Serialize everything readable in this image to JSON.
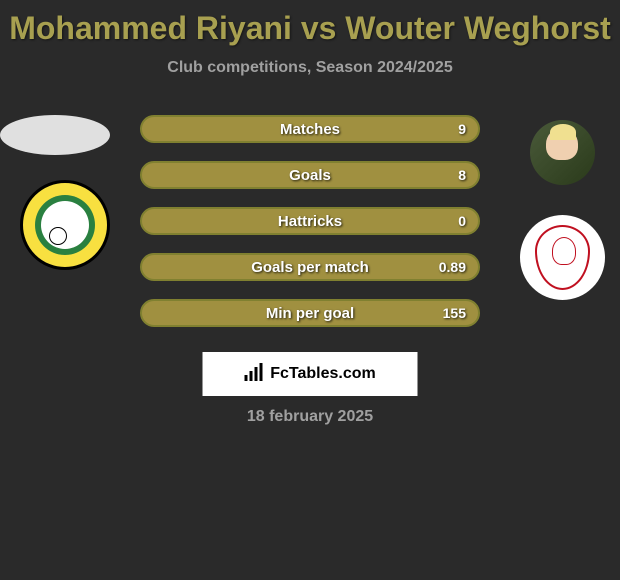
{
  "title": "Mohammed Riyani vs Wouter Weghorst",
  "subtitle": "Club competitions, Season 2024/2025",
  "date": "18 february 2025",
  "attribution": "FcTables.com",
  "bar_style": {
    "fill": "#a09040",
    "border": "#808030"
  },
  "stats": [
    {
      "label": "Matches",
      "value_right": "9"
    },
    {
      "label": "Goals",
      "value_right": "8"
    },
    {
      "label": "Hattricks",
      "value_right": "0"
    },
    {
      "label": "Goals per match",
      "value_right": "0.89"
    },
    {
      "label": "Min per goal",
      "value_right": "155"
    }
  ],
  "colors": {
    "background": "#2a2a2a",
    "title": "#a8a050",
    "subtitle": "#a0a0a0",
    "text": "#ffffff"
  }
}
